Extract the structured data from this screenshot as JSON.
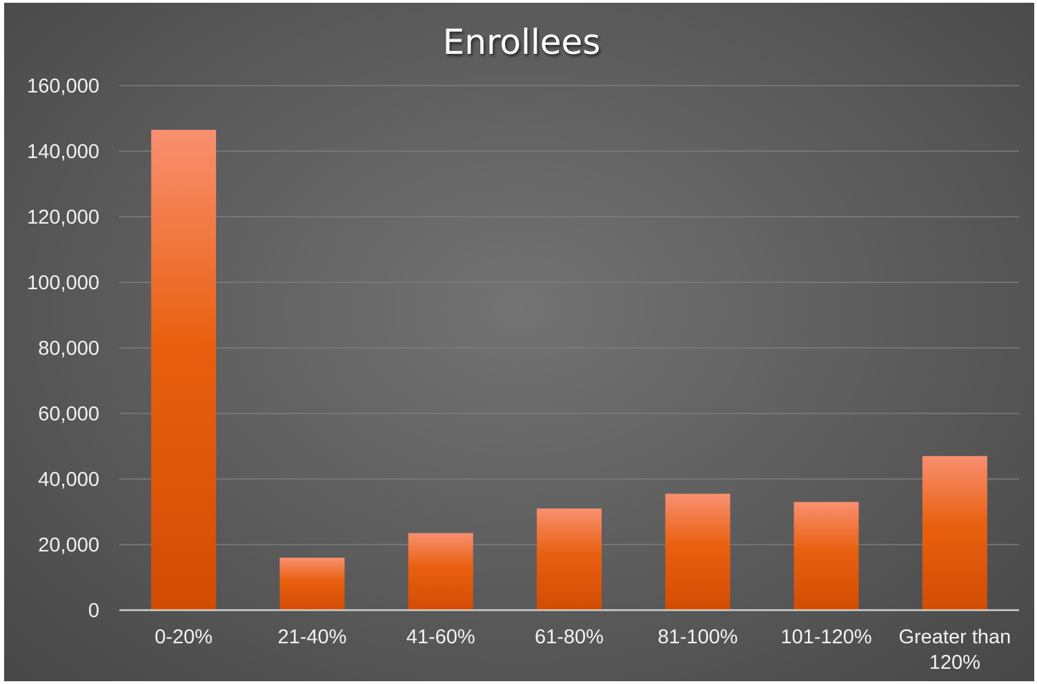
{
  "chart_data": {
    "type": "bar",
    "title": "Enrollees",
    "categories": [
      "0-20%",
      "21-40%",
      "41-60%",
      "61-80%",
      "81-100%",
      "101-120%",
      "Greater than 120%"
    ],
    "values": [
      146500,
      16000,
      23500,
      31000,
      35500,
      33000,
      47000
    ],
    "xlabel": "",
    "ylabel": "",
    "ylim": [
      0,
      160000
    ],
    "yticks": [
      0,
      20000,
      40000,
      60000,
      80000,
      100000,
      120000,
      140000,
      160000
    ],
    "ytick_labels": [
      "0",
      "20,000",
      "40,000",
      "60,000",
      "80,000",
      "100,000",
      "120,000",
      "140,000",
      "160,000"
    ],
    "grid": true,
    "legend": "none",
    "colors": {
      "bar_top": "#f99070",
      "bar_mid": "#e8600f",
      "bar_bottom": "#d24c04",
      "background_center": "#737373",
      "background_edge": "#474747"
    }
  }
}
